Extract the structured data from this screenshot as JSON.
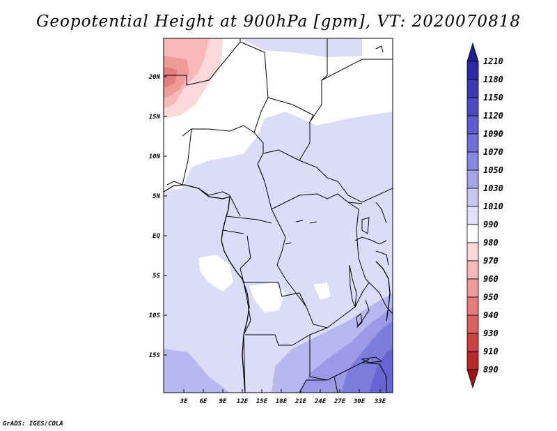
{
  "title": "Geopotential Height at 900hPa [gpm], VT: 2020070818",
  "footer": "GrADS: IGES/COLA",
  "map": {
    "lat_labels": [
      "20N",
      "15N",
      "10N",
      "5N",
      "EQ",
      "5S",
      "10S",
      "15S"
    ],
    "lon_labels": [
      "3E",
      "6E",
      "9E",
      "12E",
      "15E",
      "18E",
      "21E",
      "24E",
      "27E",
      "30E",
      "33E"
    ]
  },
  "colorbar": {
    "levels": [
      "1210",
      "1180",
      "1150",
      "1120",
      "1090",
      "1070",
      "1050",
      "1030",
      "1010",
      "990",
      "980",
      "970",
      "960",
      "950",
      "940",
      "930",
      "910",
      "890"
    ],
    "colors": [
      "#1e1e96",
      "#2b2ba8",
      "#3a3ab8",
      "#4a4ac6",
      "#5c5cd2",
      "#7070dc",
      "#8686e4",
      "#a4a4ec",
      "#c8c8f4",
      "#e0e0fa",
      "#ffffff",
      "#fcd8d8",
      "#f8b8b8",
      "#f09a9a",
      "#e67c7c",
      "#dc5e5e",
      "#cc4040",
      "#b82828",
      "#a01414"
    ]
  }
}
